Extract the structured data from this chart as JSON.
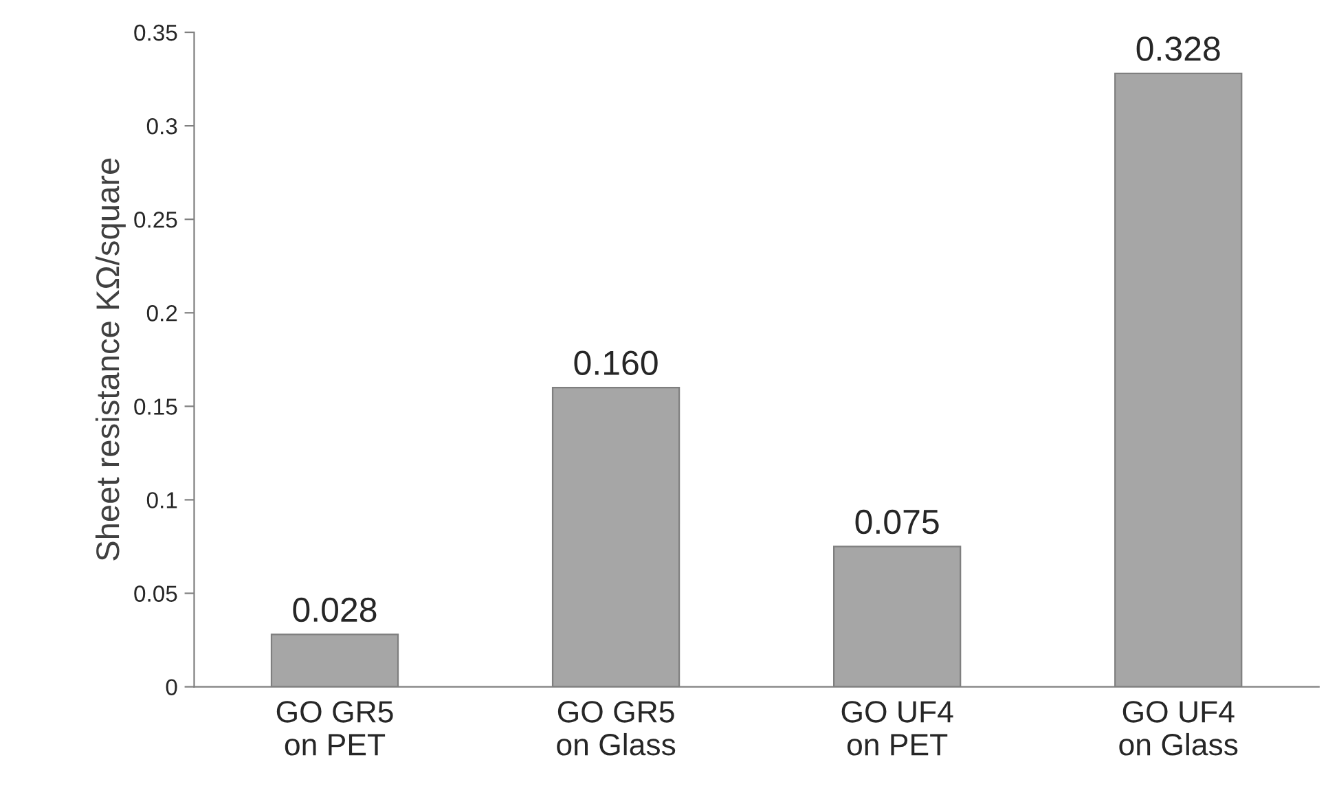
{
  "chart_data": {
    "type": "bar",
    "ylabel": "Sheet resistance KΩ/square",
    "categories": [
      "GO GR5\non PET",
      "GO GR5\non Glass",
      "GO UF4\non PET",
      "GO UF4\non Glass"
    ],
    "values": [
      0.028,
      0.16,
      0.075,
      0.328
    ],
    "value_labels": [
      "0.028",
      "0.160",
      "0.075",
      "0.328"
    ],
    "color": "#a6a6a6",
    "ylim": [
      0,
      0.35
    ],
    "yticks": [
      0,
      0.05,
      0.1,
      0.15,
      0.2,
      0.25,
      0.3,
      0.35
    ],
    "grid": false,
    "legend": false
  }
}
